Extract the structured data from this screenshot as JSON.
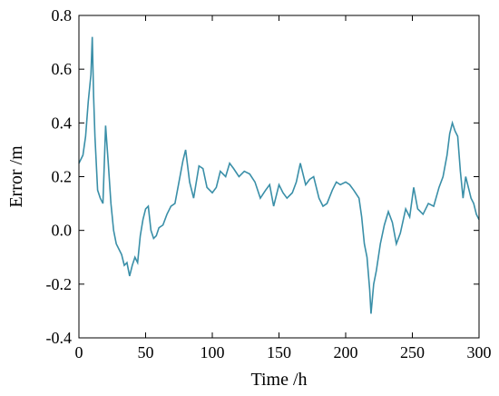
{
  "chart_data": {
    "type": "line",
    "xlabel": "Time /h",
    "ylabel": "Error /m",
    "xlim": [
      0,
      300
    ],
    "ylim": [
      -0.4,
      0.8
    ],
    "xticks": [
      0,
      50,
      100,
      150,
      200,
      250,
      300
    ],
    "yticks": [
      -0.4,
      -0.2,
      0.0,
      0.2,
      0.4,
      0.6,
      0.8
    ],
    "xtick_labels": [
      "0",
      "50",
      "100",
      "150",
      "200",
      "250",
      "300"
    ],
    "ytick_labels": [
      "-0.4",
      "-0.2",
      "0.0",
      "0.2",
      "0.4",
      "0.6",
      "0.8"
    ],
    "grid": false,
    "line_color": "#3a8fa8",
    "series": [
      {
        "x": [
          0,
          3,
          5,
          7,
          9,
          10,
          11,
          12,
          14,
          16,
          18,
          20,
          22,
          24,
          26,
          28,
          30,
          32,
          34,
          36,
          38,
          40,
          42,
          44,
          46,
          48,
          50,
          52,
          54,
          56,
          58,
          60,
          63,
          66,
          69,
          72,
          75,
          78,
          80,
          83,
          86,
          90,
          93,
          96,
          100,
          103,
          106,
          110,
          113,
          116,
          120,
          124,
          128,
          132,
          136,
          140,
          143,
          146,
          150,
          153,
          156,
          160,
          163,
          166,
          170,
          173,
          176,
          180,
          183,
          186,
          190,
          193,
          196,
          200,
          203,
          206,
          210,
          212,
          214,
          216,
          218,
          219,
          221,
          223,
          226,
          229,
          232,
          235,
          238,
          241,
          245,
          248,
          251,
          254,
          258,
          262,
          266,
          270,
          273,
          276,
          278,
          280,
          282,
          284,
          286,
          288,
          290,
          292,
          294,
          296,
          298,
          300
        ],
        "y": [
          0.25,
          0.28,
          0.35,
          0.48,
          0.58,
          0.72,
          0.5,
          0.35,
          0.15,
          0.12,
          0.1,
          0.39,
          0.25,
          0.1,
          0.0,
          -0.05,
          -0.07,
          -0.09,
          -0.13,
          -0.12,
          -0.17,
          -0.13,
          -0.1,
          -0.12,
          -0.02,
          0.04,
          0.08,
          0.09,
          0.0,
          -0.03,
          -0.02,
          0.01,
          0.02,
          0.06,
          0.09,
          0.1,
          0.18,
          0.26,
          0.3,
          0.18,
          0.12,
          0.24,
          0.23,
          0.16,
          0.14,
          0.16,
          0.22,
          0.2,
          0.25,
          0.23,
          0.2,
          0.22,
          0.21,
          0.18,
          0.12,
          0.15,
          0.17,
          0.09,
          0.17,
          0.14,
          0.12,
          0.14,
          0.18,
          0.25,
          0.17,
          0.19,
          0.2,
          0.12,
          0.09,
          0.1,
          0.15,
          0.18,
          0.17,
          0.18,
          0.17,
          0.15,
          0.12,
          0.05,
          -0.05,
          -0.1,
          -0.22,
          -0.31,
          -0.2,
          -0.15,
          -0.05,
          0.02,
          0.07,
          0.03,
          -0.05,
          -0.01,
          0.08,
          0.05,
          0.16,
          0.08,
          0.06,
          0.1,
          0.09,
          0.16,
          0.2,
          0.28,
          0.36,
          0.4,
          0.37,
          0.35,
          0.22,
          0.12,
          0.2,
          0.16,
          0.12,
          0.1,
          0.06,
          0.04
        ]
      }
    ]
  }
}
